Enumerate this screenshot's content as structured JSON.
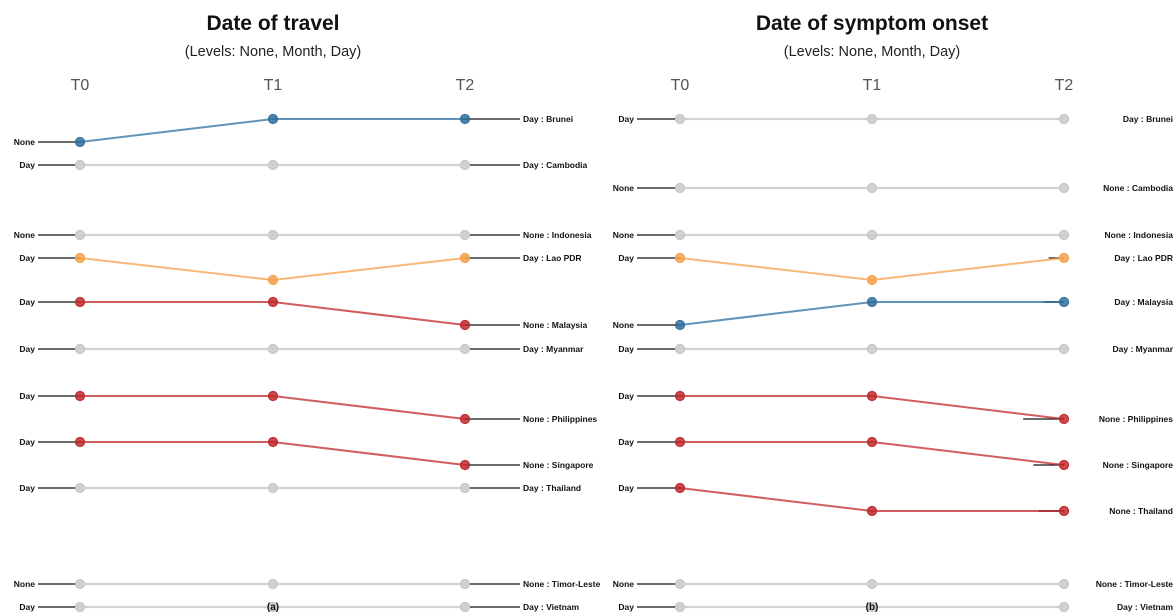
{
  "chart_data": [
    {
      "type": "slope",
      "title": "Date of travel",
      "subtitle": "(Levels: None, Month, Day)",
      "caption": "(a)",
      "time_points": [
        "T0",
        "T1",
        "T2"
      ],
      "levels": [
        "None",
        "Month",
        "Day"
      ],
      "series": [
        {
          "country": "Brunei",
          "t0_label": "None",
          "t2_label": "Day : Brunei",
          "values": [
            0,
            2,
            2
          ],
          "color": "#2e6f9e"
        },
        {
          "country": "Cambodia",
          "t0_label": "Day",
          "t2_label": "Day : Cambodia",
          "values": [
            2,
            2,
            2
          ],
          "color": "#c8c8c8"
        },
        {
          "country": "Indonesia",
          "t0_label": "None",
          "t2_label": "None : Indonesia",
          "values": [
            0,
            0,
            0
          ],
          "color": "#c8c8c8"
        },
        {
          "country": "Lao PDR",
          "t0_label": "Day",
          "t2_label": "Day : Lao PDR",
          "values": [
            2,
            0,
            2
          ],
          "color": "#f5a04a"
        },
        {
          "country": "Malaysia",
          "t0_label": "Day",
          "t2_label": "None : Malaysia",
          "values": [
            2,
            2,
            0
          ],
          "color": "#c0282c"
        },
        {
          "country": "Myanmar",
          "t0_label": "Day",
          "t2_label": "Day : Myanmar",
          "values": [
            2,
            2,
            2
          ],
          "color": "#c8c8c8"
        },
        {
          "country": "Philippines",
          "t0_label": "Day",
          "t2_label": "None : Philippines",
          "values": [
            2,
            2,
            0
          ],
          "color": "#c0282c"
        },
        {
          "country": "Singapore",
          "t0_label": "Day",
          "t2_label": "None : Singapore",
          "values": [
            2,
            2,
            0
          ],
          "color": "#c0282c"
        },
        {
          "country": "Thailand",
          "t0_label": "Day",
          "t2_label": "Day : Thailand",
          "values": [
            2,
            2,
            2
          ],
          "color": "#c8c8c8"
        },
        {
          "country": "Timor-Leste",
          "t0_label": "None",
          "t2_label": "None : Timor-Leste",
          "values": [
            0,
            0,
            0
          ],
          "color": "#c8c8c8"
        },
        {
          "country": "Vietnam",
          "t0_label": "Day",
          "t2_label": "Day : Vietnam",
          "values": [
            2,
            2,
            2
          ],
          "color": "#c8c8c8"
        }
      ]
    },
    {
      "type": "slope",
      "title": "Date of symptom onset",
      "subtitle": "(Levels: None, Month, Day)",
      "caption": "(b)",
      "time_points": [
        "T0",
        "T1",
        "T2"
      ],
      "levels": [
        "None",
        "Month",
        "Day"
      ],
      "series": [
        {
          "country": "Brunei",
          "t0_label": "Day",
          "t2_label": "Day : Brunei",
          "values": [
            2,
            2,
            2
          ],
          "color": "#c8c8c8"
        },
        {
          "country": "Cambodia",
          "t0_label": "None",
          "t2_label": "None : Cambodia",
          "values": [
            0,
            0,
            0
          ],
          "color": "#c8c8c8"
        },
        {
          "country": "Indonesia",
          "t0_label": "None",
          "t2_label": "None : Indonesia",
          "values": [
            0,
            0,
            0
          ],
          "color": "#c8c8c8"
        },
        {
          "country": "Lao PDR",
          "t0_label": "Day",
          "t2_label": "Day : Lao PDR",
          "values": [
            2,
            0,
            2
          ],
          "color": "#f5a04a"
        },
        {
          "country": "Malaysia",
          "t0_label": "None",
          "t2_label": "Day : Malaysia",
          "values": [
            0,
            2,
            2
          ],
          "color": "#2e6f9e"
        },
        {
          "country": "Myanmar",
          "t0_label": "Day",
          "t2_label": "Day : Myanmar",
          "values": [
            2,
            2,
            2
          ],
          "color": "#c8c8c8"
        },
        {
          "country": "Philippines",
          "t0_label": "Day",
          "t2_label": "None : Philippines",
          "values": [
            2,
            2,
            0
          ],
          "color": "#c0282c"
        },
        {
          "country": "Singapore",
          "t0_label": "Day",
          "t2_label": "None : Singapore",
          "values": [
            2,
            2,
            0
          ],
          "color": "#c0282c"
        },
        {
          "country": "Thailand",
          "t0_label": "Day",
          "t2_label": "None : Thailand",
          "values": [
            2,
            0,
            0
          ],
          "color": "#c0282c"
        },
        {
          "country": "Timor-Leste",
          "t0_label": "None",
          "t2_label": "None : Timor-Leste",
          "values": [
            0,
            0,
            0
          ],
          "color": "#c8c8c8"
        },
        {
          "country": "Vietnam",
          "t0_label": "Day",
          "t2_label": "Day : Vietnam",
          "values": [
            2,
            2,
            2
          ],
          "color": "#c8c8c8"
        }
      ]
    }
  ]
}
